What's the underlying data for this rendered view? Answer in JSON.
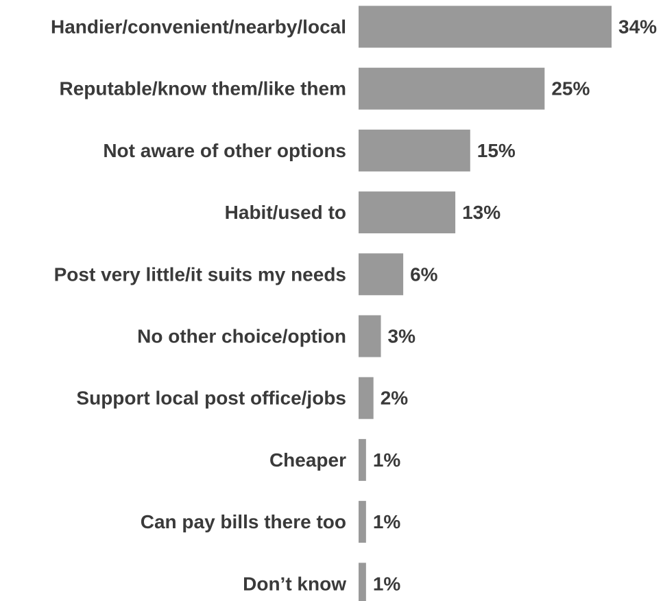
{
  "chart_data": {
    "type": "bar",
    "orientation": "horizontal",
    "title": "",
    "xlabel": "",
    "ylabel": "",
    "categories": [
      "Handier/convenient/nearby/local",
      "Reputable/know them/like them",
      "Not aware of other options",
      "Habit/used to",
      "Post very little/it suits my needs",
      "No other choice/option",
      "Support local post office/jobs",
      "Cheaper",
      "Can pay bills there too",
      "Don’t know"
    ],
    "values": [
      34,
      25,
      15,
      13,
      6,
      3,
      2,
      1,
      1,
      1
    ],
    "value_labels": [
      "34%",
      "25%",
      "15%",
      "13%",
      "6%",
      "3%",
      "2%",
      "1%",
      "1%",
      "1%"
    ],
    "unit": "%",
    "xlim": [
      0,
      34
    ],
    "grid": false,
    "legend": "none",
    "bar_color": "#999999",
    "text_color": "#3a3a3a"
  }
}
